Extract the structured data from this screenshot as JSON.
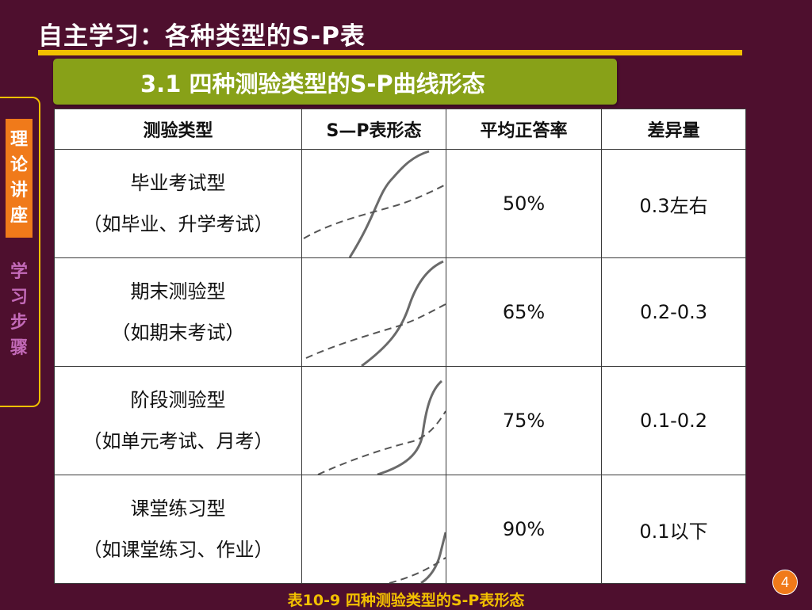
{
  "slide": {
    "title": "自主学习：各种类型的S-P表",
    "section": "3.1 四种测验类型的S-P曲线形态",
    "caption": "表10-9  四种测验类型的S-P表形态",
    "page_number": "4"
  },
  "side_nav": {
    "active": [
      "理",
      "论",
      "讲",
      "座"
    ],
    "inactive": [
      "学",
      "习",
      "步",
      "骤"
    ]
  },
  "table": {
    "headers": [
      "测验类型",
      "S—P表形态",
      "平均正答率",
      "差异量"
    ],
    "rows": [
      {
        "type": "毕业考试型",
        "example": "（如毕业、升学考试）",
        "rate": "50%",
        "variance": "0.3左右"
      },
      {
        "type": "期末测验型",
        "example": "（如期末考试）",
        "rate": "65%",
        "variance": "0.2-0.3"
      },
      {
        "type": "阶段测验型",
        "example": "（如单元考试、月考）",
        "rate": "75%",
        "variance": "0.1-0.2"
      },
      {
        "type": "课堂练习型",
        "example": "（如课堂练习、作业）",
        "rate": "90%",
        "variance": "0.1以下"
      }
    ]
  },
  "colors": {
    "background": "#4e0f2e",
    "accent_rule": "#f2c000",
    "section_banner": "#88a118",
    "side_active": "#f07a1a",
    "side_inactive_text": "#c36ab8"
  }
}
